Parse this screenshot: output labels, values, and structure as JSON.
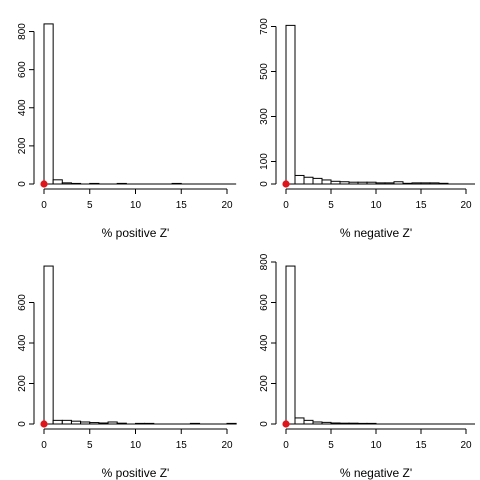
{
  "chart_data": [
    {
      "type": "bar",
      "xlabel": "% positive Z'",
      "ylabel": "",
      "xlim": [
        0,
        20
      ],
      "xticks": [
        0,
        5,
        10,
        15,
        20
      ],
      "ylim": [
        0,
        850
      ],
      "yticks": [
        0,
        200,
        400,
        600,
        800
      ],
      "bin_width": 1,
      "counts": [
        840,
        22,
        6,
        3,
        0,
        3,
        0,
        0,
        3,
        0,
        0,
        0,
        0,
        0,
        3,
        0,
        0,
        0,
        0,
        0,
        0
      ],
      "marker": {
        "x": 0,
        "y": 0,
        "color": "#e0151b"
      }
    },
    {
      "type": "bar",
      "xlabel": "% negative Z'",
      "ylabel": "",
      "xlim": [
        0,
        20
      ],
      "xticks": [
        0,
        5,
        10,
        15,
        20
      ],
      "ylim": [
        0,
        720
      ],
      "yticks": [
        0,
        100,
        300,
        500,
        700
      ],
      "bin_width": 1,
      "counts": [
        705,
        38,
        30,
        25,
        18,
        12,
        10,
        8,
        8,
        8,
        5,
        5,
        10,
        3,
        5,
        5,
        5,
        3,
        0,
        0,
        0
      ],
      "marker": {
        "x": 0,
        "y": 0,
        "color": "#e0151b"
      }
    },
    {
      "type": "bar",
      "xlabel": "% positive Z'",
      "ylabel": "",
      "xlim": [
        0,
        20
      ],
      "xticks": [
        0,
        5,
        10,
        15,
        20
      ],
      "ylim": [
        0,
        800
      ],
      "yticks": [
        0,
        200,
        400,
        600
      ],
      "bin_width": 1,
      "counts": [
        780,
        18,
        18,
        14,
        10,
        7,
        5,
        10,
        4,
        0,
        3,
        3,
        0,
        0,
        0,
        0,
        3,
        0,
        0,
        0,
        3
      ],
      "marker": {
        "x": 0,
        "y": 0,
        "color": "#e0151b"
      }
    },
    {
      "type": "bar",
      "xlabel": "% negative Z'",
      "ylabel": "",
      "xlim": [
        0,
        20
      ],
      "xticks": [
        0,
        5,
        10,
        15,
        20
      ],
      "ylim": [
        0,
        800
      ],
      "yticks": [
        0,
        200,
        400,
        600,
        800
      ],
      "bin_width": 1,
      "counts": [
        780,
        30,
        18,
        10,
        8,
        5,
        4,
        4,
        3,
        3,
        0,
        0,
        0,
        0,
        0,
        0,
        0,
        0,
        0,
        0,
        0
      ],
      "marker": {
        "x": 0,
        "y": 0,
        "color": "#e0151b"
      }
    }
  ]
}
